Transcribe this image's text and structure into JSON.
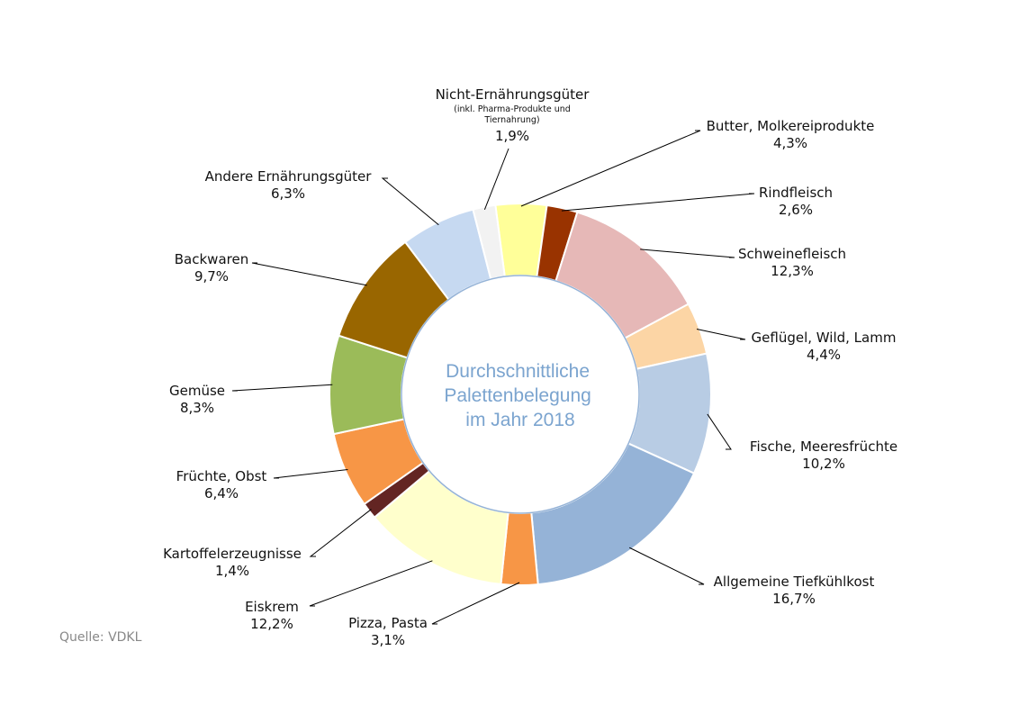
{
  "chart_data": {
    "type": "pie",
    "variant": "donut",
    "center_text": [
      "Durchschnittliche",
      "Palettenbelegung",
      "im Jahr 2018"
    ],
    "slices": [
      {
        "label": "Butter, Molkereiprodukte",
        "sublabel": [],
        "value": 4.3,
        "value_text": "4,3%",
        "color": "#ffff99"
      },
      {
        "label": "Rindfleisch",
        "sublabel": [],
        "value": 2.6,
        "value_text": "2,6%",
        "color": "#993300"
      },
      {
        "label": "Schweinefleisch",
        "sublabel": [],
        "value": 12.3,
        "value_text": "12,3%",
        "color": "#e6b8b7"
      },
      {
        "label": "Geflügel, Wild, Lamm",
        "sublabel": [],
        "value": 4.4,
        "value_text": "4,4%",
        "color": "#fcd5a5"
      },
      {
        "label": "Fische, Meeresfrüchte",
        "sublabel": [],
        "value": 10.2,
        "value_text": "10,2%",
        "color": "#b8cce4"
      },
      {
        "label": "Allgemeine Tiefkühlkost",
        "sublabel": [],
        "value": 16.7,
        "value_text": "16,7%",
        "color": "#95b3d7"
      },
      {
        "label": "Pizza, Pasta",
        "sublabel": [],
        "value": 3.1,
        "value_text": "3,1%",
        "color": "#f79646"
      },
      {
        "label": "Eiskrem",
        "sublabel": [],
        "value": 12.2,
        "value_text": "12,2%",
        "color": "#ffffcc"
      },
      {
        "label": "Kartoffelerzeugnisse",
        "sublabel": [],
        "value": 1.4,
        "value_text": "1,4%",
        "color": "#632523"
      },
      {
        "label": "Früchte, Obst",
        "sublabel": [],
        "value": 6.4,
        "value_text": "6,4%",
        "color": "#f79646"
      },
      {
        "label": "Gemüse",
        "sublabel": [],
        "value": 8.3,
        "value_text": "8,3%",
        "color": "#9bbb59"
      },
      {
        "label": "Backwaren",
        "sublabel": [],
        "value": 9.7,
        "value_text": "9,7%",
        "color": "#996600"
      },
      {
        "label": "Andere Ernährungsgüter",
        "sublabel": [],
        "value": 6.3,
        "value_text": "6,3%",
        "color": "#c6d9f1"
      },
      {
        "label": "Nicht-Ernährungsgüter",
        "sublabel": [
          "(inkl. Pharma-Produkte und",
          "Tiernahrung)"
        ],
        "value": 1.9,
        "value_text": "1,9%",
        "color": "#f2f2f2"
      }
    ]
  },
  "source_text": "Quelle: VDKL"
}
